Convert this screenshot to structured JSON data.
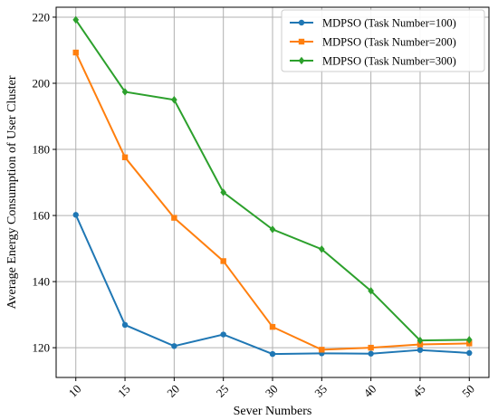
{
  "chart_data": {
    "type": "line",
    "title": "",
    "xlabel": "Sever Numbers",
    "ylabel": "Average Energy Consumption of User Cluster",
    "x": [
      10,
      15,
      20,
      25,
      30,
      35,
      40,
      45,
      50
    ],
    "x_tick_labels": [
      "10",
      "15",
      "20",
      "25",
      "30",
      "35",
      "40",
      "45",
      "50"
    ],
    "y_ticks": [
      120,
      140,
      160,
      180,
      200,
      220
    ],
    "y_tick_labels": [
      "120",
      "140",
      "160",
      "180",
      "200",
      "220"
    ],
    "xlim": [
      8,
      52
    ],
    "ylim": [
      111,
      223
    ],
    "grid": true,
    "legend_position": "top-right",
    "series": [
      {
        "name": "MDPSO (Task Number=100)",
        "color": "#1f77b4",
        "marker": "circle",
        "values": [
          160.2,
          126.9,
          120.5,
          124.0,
          118.1,
          118.3,
          118.2,
          119.3,
          118.4
        ]
      },
      {
        "name": "MDPSO (Task Number=200)",
        "color": "#ff7f0e",
        "marker": "square",
        "values": [
          209.3,
          177.6,
          159.3,
          146.2,
          126.3,
          119.4,
          120.0,
          121.0,
          121.3
        ]
      },
      {
        "name": "MDPSO (Task Number=300)",
        "color": "#2ca02c",
        "marker": "diamond",
        "values": [
          219.2,
          197.4,
          195.0,
          167.0,
          155.8,
          149.8,
          137.2,
          122.2,
          122.4
        ]
      }
    ]
  }
}
